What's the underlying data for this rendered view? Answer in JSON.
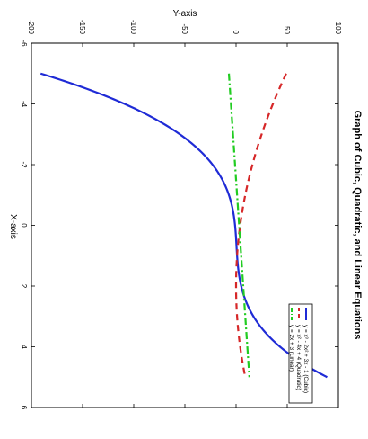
{
  "chart_data": {
    "type": "line",
    "title": "Graph of Cubic, Quadratic, and Linear Equations",
    "xlabel": "X-axis",
    "ylabel": "Y-axis",
    "xlim": [
      -6,
      6
    ],
    "ylim": [
      -200,
      100
    ],
    "x_ticks": [
      "-6",
      "-4",
      "-2",
      "0",
      "2",
      "4",
      "6"
    ],
    "y_ticks": [
      "-200",
      "-150",
      "-100",
      "-50",
      "0",
      "50",
      "100"
    ],
    "grid": false,
    "legend_position": "bottom-right",
    "x_range": [
      -5,
      5
    ],
    "series": [
      {
        "name": "y = x³ - 2x² + 3x - 1 (Cubic)",
        "formula": "cubic",
        "color": "#1f2bd6",
        "style": "solid"
      },
      {
        "name": "y = x² - 4x + 4 (Quadratic)",
        "formula": "quadratic",
        "color": "#d62728",
        "style": "dashed"
      },
      {
        "name": "y = 2x + 3 (Linear)",
        "formula": "linear",
        "color": "#22cc22",
        "style": "dashdot"
      }
    ]
  }
}
